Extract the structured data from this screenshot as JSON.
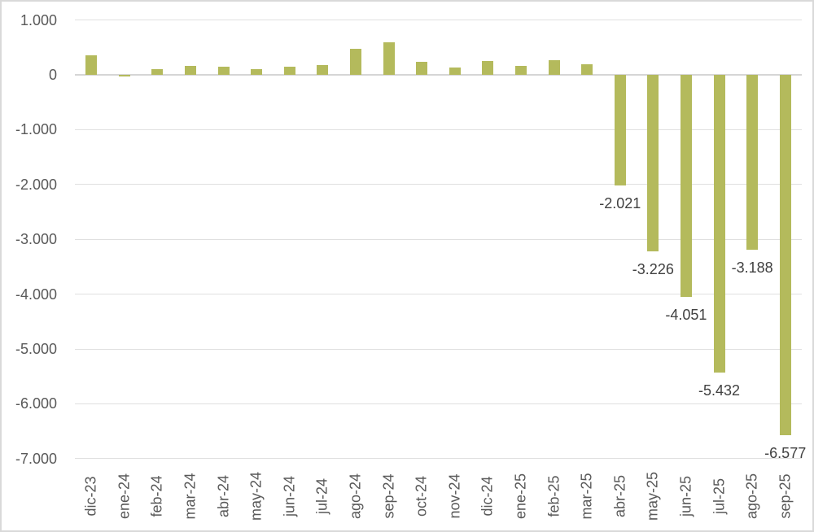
{
  "chart_data": {
    "type": "bar",
    "title": "",
    "xlabel": "",
    "ylabel": "",
    "categories": [
      "dic-23",
      "ene-24",
      "feb-24",
      "mar-24",
      "abr-24",
      "may-24",
      "jun-24",
      "jul-24",
      "ago-24",
      "sep-24",
      "oct-24",
      "nov-24",
      "dic-24",
      "ene-25",
      "feb-25",
      "mar-25",
      "abr-25",
      "may-25",
      "jun-25",
      "jul-25",
      "ago-25",
      "sep-25"
    ],
    "values": [
      350,
      -25,
      100,
      165,
      155,
      110,
      155,
      185,
      470,
      600,
      235,
      130,
      245,
      160,
      260,
      195,
      -2021,
      -3226,
      -4051,
      -5432,
      -3188,
      -6577
    ],
    "data_labels": [
      null,
      null,
      null,
      null,
      null,
      null,
      null,
      null,
      null,
      null,
      null,
      null,
      null,
      null,
      null,
      null,
      "-2.021",
      "-3.226",
      "-4.051",
      "-5.432",
      "-3.188",
      "-6.577"
    ],
    "ylim": [
      -7000,
      1000
    ],
    "y_ticks": [
      1000,
      0,
      -1000,
      -2000,
      -3000,
      -4000,
      -5000,
      -6000,
      -7000
    ],
    "y_tick_labels": [
      "1.000",
      "0",
      "-1.000",
      "-2.000",
      "-3.000",
      "-4.000",
      "-5.000",
      "-6.000",
      "-7.000"
    ],
    "grid": true,
    "legend": "none",
    "colors": {
      "bar_fill": "#b4ba5c",
      "axis_text": "#595959",
      "data_label_text": "#404040",
      "gridline": "#e0e0e0",
      "axis_line": "#d6d6d6",
      "chart_border": "#d9d9d9",
      "background": "#ffffff"
    }
  }
}
